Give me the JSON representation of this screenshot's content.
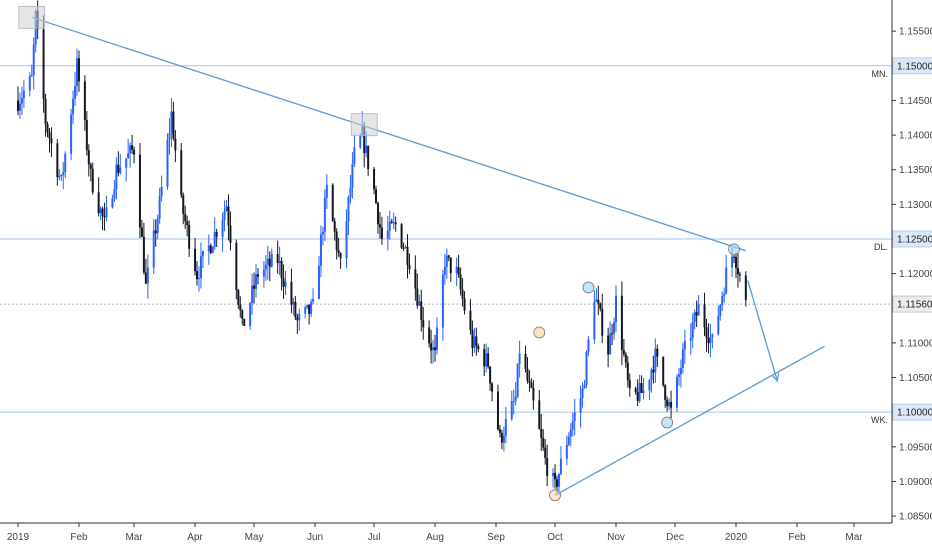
{
  "chart_data": {
    "type": "candlestick",
    "title": "",
    "xlabel": "",
    "ylabel": "",
    "x_range": [
      "2019-01-01",
      "2020-03-31"
    ],
    "ylim": [
      1.084,
      1.1595
    ],
    "x_ticks": [
      {
        "date": "2019-01-01",
        "label": "2019"
      },
      {
        "date": "2019-02-01",
        "label": "Feb"
      },
      {
        "date": "2019-03-01",
        "label": "Mar"
      },
      {
        "date": "2019-04-01",
        "label": "Apr"
      },
      {
        "date": "2019-05-01",
        "label": "May"
      },
      {
        "date": "2019-06-01",
        "label": "Jun"
      },
      {
        "date": "2019-07-01",
        "label": "Jul"
      },
      {
        "date": "2019-08-01",
        "label": "Aug"
      },
      {
        "date": "2019-09-01",
        "label": "Sep"
      },
      {
        "date": "2019-10-01",
        "label": "Oct"
      },
      {
        "date": "2019-11-01",
        "label": "Nov"
      },
      {
        "date": "2019-12-01",
        "label": "Dec"
      },
      {
        "date": "2020-01-01",
        "label": "2020"
      },
      {
        "date": "2020-02-01",
        "label": "Feb"
      },
      {
        "date": "2020-03-01",
        "label": "Mar"
      }
    ],
    "y_ticks": [
      "1.15500",
      "1.14500",
      "1.14000",
      "1.13500",
      "1.13000",
      "1.12000",
      "1.11000",
      "1.10500",
      "1.09500",
      "1.09000",
      "1.08500"
    ],
    "price_path": [
      [
        "2019-01-01",
        1.145
      ],
      [
        "2019-01-08",
        1.148
      ],
      [
        "2019-01-10",
        1.157
      ],
      [
        "2019-01-15",
        1.142
      ],
      [
        "2019-01-23",
        1.133
      ],
      [
        "2019-01-31",
        1.15
      ],
      [
        "2019-02-07",
        1.134
      ],
      [
        "2019-02-14",
        1.127
      ],
      [
        "2019-02-20",
        1.135
      ],
      [
        "2019-03-01",
        1.138
      ],
      [
        "2019-03-07",
        1.118
      ],
      [
        "2019-03-14",
        1.13
      ],
      [
        "2019-03-20",
        1.143
      ],
      [
        "2019-03-25",
        1.13
      ],
      [
        "2019-04-02",
        1.12
      ],
      [
        "2019-04-10",
        1.125
      ],
      [
        "2019-04-17",
        1.13
      ],
      [
        "2019-04-25",
        1.112
      ],
      [
        "2019-05-03",
        1.12
      ],
      [
        "2019-05-13",
        1.122
      ],
      [
        "2019-05-23",
        1.113
      ],
      [
        "2019-05-31",
        1.115
      ],
      [
        "2019-06-07",
        1.132
      ],
      [
        "2019-06-14",
        1.121
      ],
      [
        "2019-06-21",
        1.137
      ],
      [
        "2019-06-25",
        1.14
      ],
      [
        "2019-07-01",
        1.132
      ],
      [
        "2019-07-05",
        1.125
      ],
      [
        "2019-07-12",
        1.127
      ],
      [
        "2019-07-19",
        1.122
      ],
      [
        "2019-07-26",
        1.113
      ],
      [
        "2019-08-01",
        1.108
      ],
      [
        "2019-08-06",
        1.122
      ],
      [
        "2019-08-12",
        1.12
      ],
      [
        "2019-08-20",
        1.11
      ],
      [
        "2019-08-28",
        1.107
      ],
      [
        "2019-09-03",
        1.096
      ],
      [
        "2019-09-11",
        1.102
      ],
      [
        "2019-09-13",
        1.109
      ],
      [
        "2019-09-20",
        1.101
      ],
      [
        "2019-09-26",
        1.093
      ],
      [
        "2019-10-01",
        1.089
      ],
      [
        "2019-10-08",
        1.097
      ],
      [
        "2019-10-15",
        1.103
      ],
      [
        "2019-10-21",
        1.117
      ],
      [
        "2019-10-28",
        1.109
      ],
      [
        "2019-11-01",
        1.116
      ],
      [
        "2019-11-08",
        1.102
      ],
      [
        "2019-11-15",
        1.103
      ],
      [
        "2019-11-21",
        1.108
      ],
      [
        "2019-11-29",
        1.1
      ],
      [
        "2019-12-05",
        1.108
      ],
      [
        "2019-12-13",
        1.115
      ],
      [
        "2019-12-20",
        1.11
      ],
      [
        "2019-12-27",
        1.12
      ],
      [
        "2019-12-31",
        1.1235
      ],
      [
        "2020-01-06",
        1.1156
      ]
    ],
    "current_price": "1.11560",
    "horizontal_levels": [
      {
        "price": 1.15,
        "label": "1.15000",
        "tag": "MN."
      },
      {
        "price": 1.125,
        "label": "1.12500",
        "tag": "DL."
      },
      {
        "price": 1.1,
        "label": "1.10000",
        "tag": "WK."
      }
    ],
    "trendlines": [
      {
        "from": [
          "2019-01-08",
          1.157
        ],
        "to": [
          "2020-01-06",
          1.1233
        ]
      },
      {
        "from": [
          "2019-10-01",
          1.088
        ],
        "to": [
          "2020-02-15",
          1.1095
        ]
      }
    ],
    "projection_arrow": {
      "from": [
        "2020-01-07",
        1.119
      ],
      "to": [
        "2020-01-22",
        1.1045
      ]
    },
    "markers": [
      {
        "date": "2019-01-08",
        "price": 1.157,
        "shape": "square",
        "color": "#cfcfcf"
      },
      {
        "date": "2019-06-26",
        "price": 1.1415,
        "shape": "square",
        "color": "#cfcfcf"
      },
      {
        "date": "2019-09-23",
        "price": 1.1115,
        "shape": "circle",
        "color": "#ffd08a"
      },
      {
        "date": "2019-10-01",
        "price": 1.088,
        "shape": "circle",
        "color": "#f3d2b0"
      },
      {
        "date": "2019-10-18",
        "price": 1.118,
        "shape": "circle",
        "color": "#9cd2f4"
      },
      {
        "date": "2019-11-27",
        "price": 1.0985,
        "shape": "circle",
        "color": "#9cd2f4"
      },
      {
        "date": "2019-12-31",
        "price": 1.1235,
        "shape": "circle",
        "color": "#9cd2f4"
      }
    ],
    "colors": {
      "up": "#2962ff",
      "down": "#131722",
      "trendline": "#5b9bd5",
      "level_line": "#a9c7ea",
      "current_price_line": "#bbbbbb",
      "axis": "#333333"
    },
    "grid": false
  }
}
